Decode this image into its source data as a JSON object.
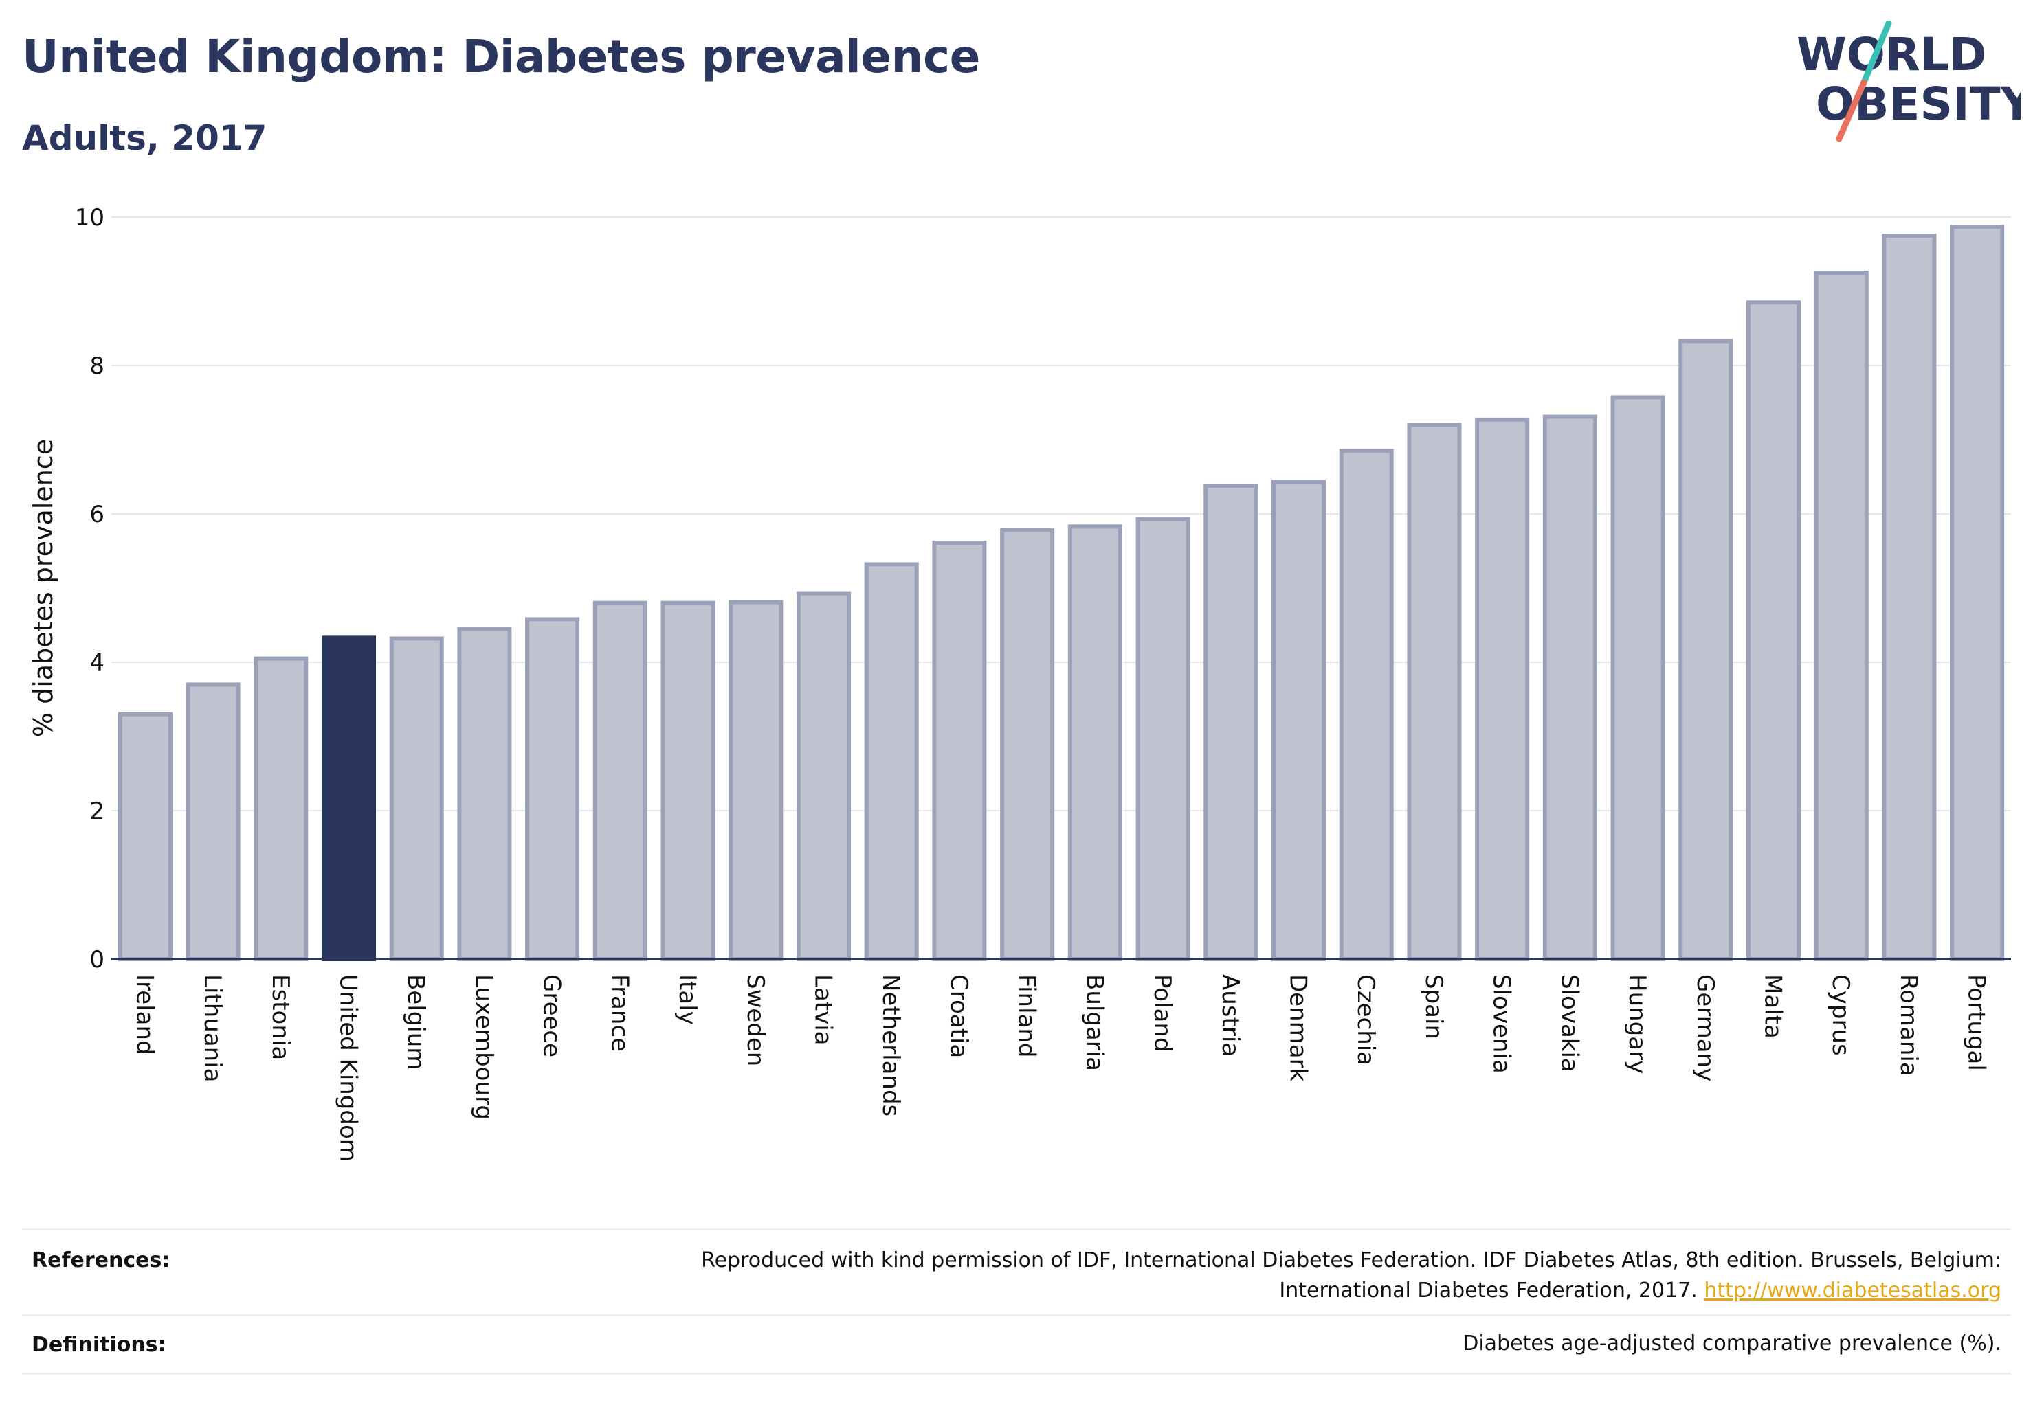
{
  "title": "United Kingdom: Diabetes prevalence",
  "subtitle": "Adults, 2017",
  "logo": {
    "line1": "WORLD",
    "line2": "OBESITY",
    "colors": {
      "text": "#2b365e",
      "slash_top": "#3bbfb5",
      "slash_bottom": "#e8705f"
    }
  },
  "chart_data": {
    "type": "bar",
    "ylabel": "% diabetes prevalence",
    "xlabel": "",
    "ylim": [
      0,
      10
    ],
    "yticks": [
      0,
      2,
      4,
      6,
      8,
      10
    ],
    "grid": true,
    "highlight": "United Kingdom",
    "colors": {
      "bar": "#bfc3d0",
      "bar_border": "#9ba1b8",
      "highlight": "#2b365e",
      "grid": "#e6e8ee",
      "axis": "#2b365e"
    },
    "categories": [
      "Ireland",
      "Lithuania",
      "Estonia",
      "United Kingdom",
      "Belgium",
      "Luxembourg",
      "Greece",
      "France",
      "Italy",
      "Sweden",
      "Latvia",
      "Netherlands",
      "Croatia",
      "Finland",
      "Bulgaria",
      "Poland",
      "Austria",
      "Denmark",
      "Czechia",
      "Spain",
      "Slovenia",
      "Slovakia",
      "Hungary",
      "Germany",
      "Malta",
      "Cyprus",
      "Romania",
      "Portugal"
    ],
    "values": [
      3.3,
      3.7,
      4.05,
      4.33,
      4.32,
      4.45,
      4.58,
      4.8,
      4.8,
      4.81,
      4.93,
      5.32,
      5.61,
      5.78,
      5.83,
      5.93,
      6.38,
      6.43,
      6.85,
      7.2,
      7.27,
      7.31,
      7.57,
      8.33,
      8.85,
      9.25,
      9.75,
      9.87
    ]
  },
  "references": {
    "label": "References:",
    "line1": "Reproduced with kind permission of IDF, International Diabetes Federation. IDF Diabetes Atlas, 8th edition. Brussels, Belgium:",
    "line2": "International Diabetes Federation, 2017.",
    "link": "http://www.diabetesatlas.org"
  },
  "definitions": {
    "label": "Definitions:",
    "text": "Diabetes age-adjusted comparative prevalence (%)."
  }
}
